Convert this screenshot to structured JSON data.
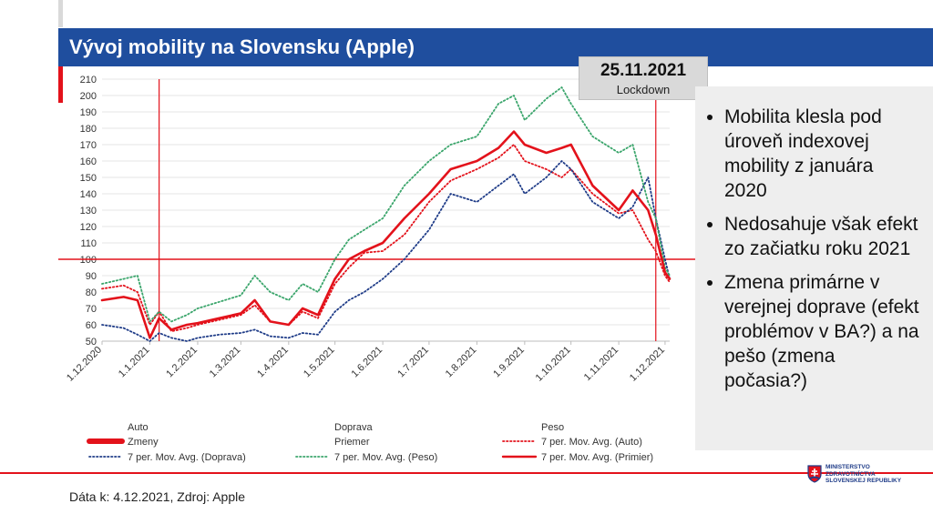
{
  "slide": {
    "title": "Vývoj mobility na Slovensku (Apple)",
    "footer": "Dáta k: 4.12.2021, Zdroj: Apple",
    "ministry_lines": [
      "MINISTERSTVO",
      "ZDRAVOTNÍCTVA",
      "SLOVENSKEJ REPUBLIKY"
    ]
  },
  "callout": {
    "date": "25.11.2021",
    "label": "Lockdown"
  },
  "bullets": [
    "Mobilita klesla pod úroveň indexovej mobility z januára 2020",
    "Nedosahuje však efekt zo začiatku roku 2021",
    "Zmena primárne v verejnej doprave (efekt problémov v BA?) a na pešo (zmena počasia?)"
  ],
  "colors": {
    "title_bar": "#1f4e9e",
    "red": "#e3121b",
    "navy": "#1f3c88",
    "green": "#3aa56b",
    "panel": "#eeeeee"
  },
  "chart_data": {
    "type": "line",
    "x": [
      "2020-12-01",
      "2020-12-15",
      "2020-12-24",
      "2021-01-01",
      "2021-01-07",
      "2021-01-15",
      "2021-01-25",
      "2021-02-01",
      "2021-02-15",
      "2021-03-01",
      "2021-03-10",
      "2021-03-20",
      "2021-04-01",
      "2021-04-10",
      "2021-04-20",
      "2021-05-01",
      "2021-05-10",
      "2021-05-20",
      "2021-06-01",
      "2021-06-15",
      "2021-07-01",
      "2021-07-15",
      "2021-08-01",
      "2021-08-15",
      "2021-08-25",
      "2021-09-01",
      "2021-09-15",
      "2021-09-25",
      "2021-10-01",
      "2021-10-15",
      "2021-11-01",
      "2021-11-10",
      "2021-11-20",
      "2021-11-25",
      "2021-12-01",
      "2021-12-04"
    ],
    "series": [
      {
        "name": "Auto",
        "style": "dotted",
        "color": "#e3121b",
        "values": [
          82,
          84,
          80,
          60,
          68,
          56,
          58,
          60,
          63,
          66,
          72,
          62,
          60,
          68,
          64,
          85,
          95,
          104,
          105,
          115,
          135,
          148,
          155,
          162,
          170,
          160,
          155,
          150,
          155,
          140,
          128,
          130,
          112,
          105,
          90,
          86
        ]
      },
      {
        "name": "7 per. Mov. Avg. (Doprava)",
        "style": "dotted",
        "color": "#1f3c88",
        "values": [
          60,
          58,
          54,
          50,
          55,
          52,
          50,
          52,
          54,
          55,
          57,
          53,
          52,
          55,
          54,
          68,
          75,
          80,
          88,
          100,
          118,
          140,
          135,
          145,
          152,
          140,
          150,
          160,
          155,
          135,
          125,
          132,
          150,
          125,
          100,
          88
        ]
      },
      {
        "name": "7 per. Mov. Avg. (Peso)",
        "style": "dotted",
        "color": "#3aa56b",
        "values": [
          85,
          88,
          90,
          62,
          68,
          62,
          66,
          70,
          74,
          78,
          90,
          80,
          75,
          85,
          80,
          100,
          112,
          118,
          125,
          145,
          160,
          170,
          175,
          195,
          200,
          185,
          198,
          205,
          195,
          175,
          165,
          170,
          135,
          125,
          95,
          90
        ]
      },
      {
        "name": "7 per. Mov. Avg. (Primier)",
        "style": "solid",
        "color": "#e3121b",
        "values": [
          75,
          77,
          75,
          52,
          64,
          57,
          60,
          61,
          64,
          67,
          75,
          62,
          60,
          70,
          66,
          88,
          100,
          105,
          110,
          125,
          140,
          155,
          160,
          168,
          178,
          170,
          165,
          168,
          170,
          145,
          130,
          142,
          130,
          115,
          92,
          88
        ]
      }
    ],
    "ylim": [
      50,
      210
    ],
    "yticks": [
      50,
      60,
      70,
      80,
      90,
      100,
      110,
      120,
      130,
      140,
      150,
      160,
      170,
      180,
      190,
      200,
      210
    ],
    "xticks": [
      {
        "date": "2020-12-01",
        "label": "1.12.2020"
      },
      {
        "date": "2021-01-01",
        "label": "1.1.2021"
      },
      {
        "date": "2021-02-01",
        "label": "1.2.2021"
      },
      {
        "date": "2021-03-01",
        "label": "1.3.2021"
      },
      {
        "date": "2021-04-01",
        "label": "1.4.2021"
      },
      {
        "date": "2021-05-01",
        "label": "1.5.2021"
      },
      {
        "date": "2021-06-01",
        "label": "1.6.2021"
      },
      {
        "date": "2021-07-01",
        "label": "1.7.2021"
      },
      {
        "date": "2021-08-01",
        "label": "1.8.2021"
      },
      {
        "date": "2021-09-01",
        "label": "1.9.2021"
      },
      {
        "date": "2021-10-01",
        "label": "1.10.2021"
      },
      {
        "date": "2021-11-01",
        "label": "1.11.2021"
      },
      {
        "date": "2021-12-01",
        "label": "1.12.2021"
      }
    ],
    "reference_line": 100,
    "vertical_markers": [
      "2021-01-07",
      "2021-11-25"
    ],
    "grid": true,
    "legend_position": "bottom",
    "legend": [
      {
        "label": "Auto",
        "swatch": "none"
      },
      {
        "label": "Doprava",
        "swatch": "none"
      },
      {
        "label": "Peso",
        "swatch": "none"
      },
      {
        "label": "Zmeny",
        "swatch": "thick-red"
      },
      {
        "label": "Priemer",
        "swatch": "none"
      },
      {
        "label": "7 per. Mov. Avg. (Auto)",
        "swatch": "dotted-red"
      },
      {
        "label": "7 per. Mov. Avg. (Doprava)",
        "swatch": "dotted-navy"
      },
      {
        "label": "7 per. Mov. Avg. (Peso)",
        "swatch": "dotted-green"
      },
      {
        "label": "7 per. Mov. Avg. (Primier)",
        "swatch": "solid-red"
      }
    ]
  }
}
